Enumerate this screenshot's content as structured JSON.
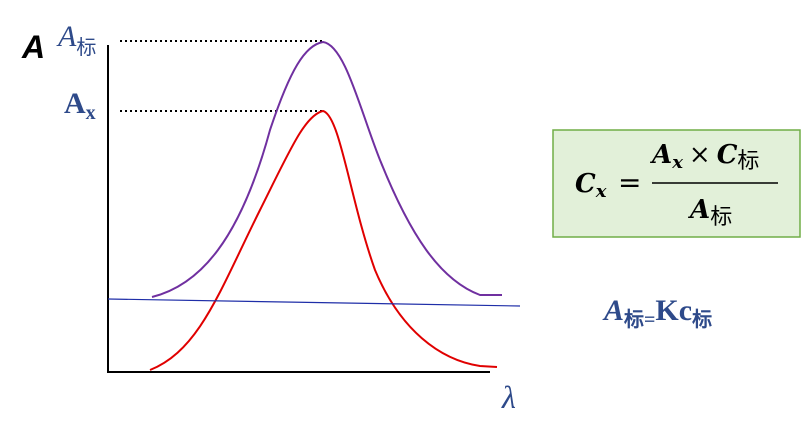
{
  "axes": {
    "y_label": "A",
    "x_label": "λ"
  },
  "peak_labels": [
    {
      "symbol": "A",
      "subscript": "标"
    },
    {
      "symbol": "A",
      "subscript": "x"
    }
  ],
  "formula": {
    "left": {
      "symbol": "C",
      "subscript": "x"
    },
    "equals": "=",
    "numerator": {
      "first": {
        "symbol": "A",
        "subscript": "x"
      },
      "operator": "×",
      "second": {
        "symbol": "C",
        "subscript": "标"
      }
    },
    "denominator": {
      "symbol": "A",
      "subscript": "标"
    }
  },
  "relation": {
    "left": {
      "symbol": "A",
      "subscript": "标"
    },
    "equals": "=",
    "right": {
      "symbol": "Kc",
      "subscript": "标"
    }
  }
}
